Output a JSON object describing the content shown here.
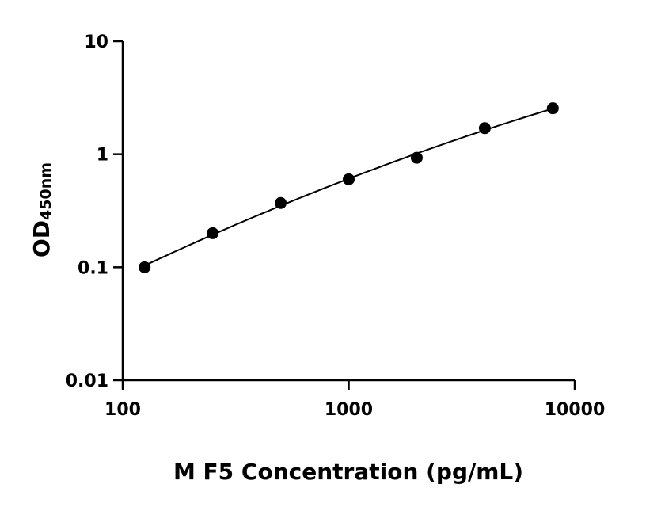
{
  "chart_data": {
    "type": "scatter",
    "x_scale": "log",
    "y_scale": "log",
    "xlabel": "M F5 Concentration (pg/mL)",
    "ylabel_main": "OD",
    "ylabel_sub": "450nm",
    "xlim": [
      100,
      10000
    ],
    "ylim": [
      0.01,
      10
    ],
    "x_ticks": [
      {
        "value": 100,
        "label": "100"
      },
      {
        "value": 1000,
        "label": "1000"
      },
      {
        "value": 10000,
        "label": "10000"
      }
    ],
    "y_ticks": [
      {
        "value": 0.01,
        "label": "0.01"
      },
      {
        "value": 0.1,
        "label": "0.1"
      },
      {
        "value": 1,
        "label": "1"
      },
      {
        "value": 10,
        "label": "10"
      }
    ],
    "grid": false,
    "marker_color": "#000000",
    "line_color": "#000000",
    "series": [
      {
        "x": [
          125,
          250,
          500,
          1000,
          2000,
          4000,
          8000
        ],
        "y": [
          0.1,
          0.2,
          0.37,
          0.6,
          0.93,
          1.7,
          2.55
        ]
      }
    ],
    "fit_curve": true
  }
}
